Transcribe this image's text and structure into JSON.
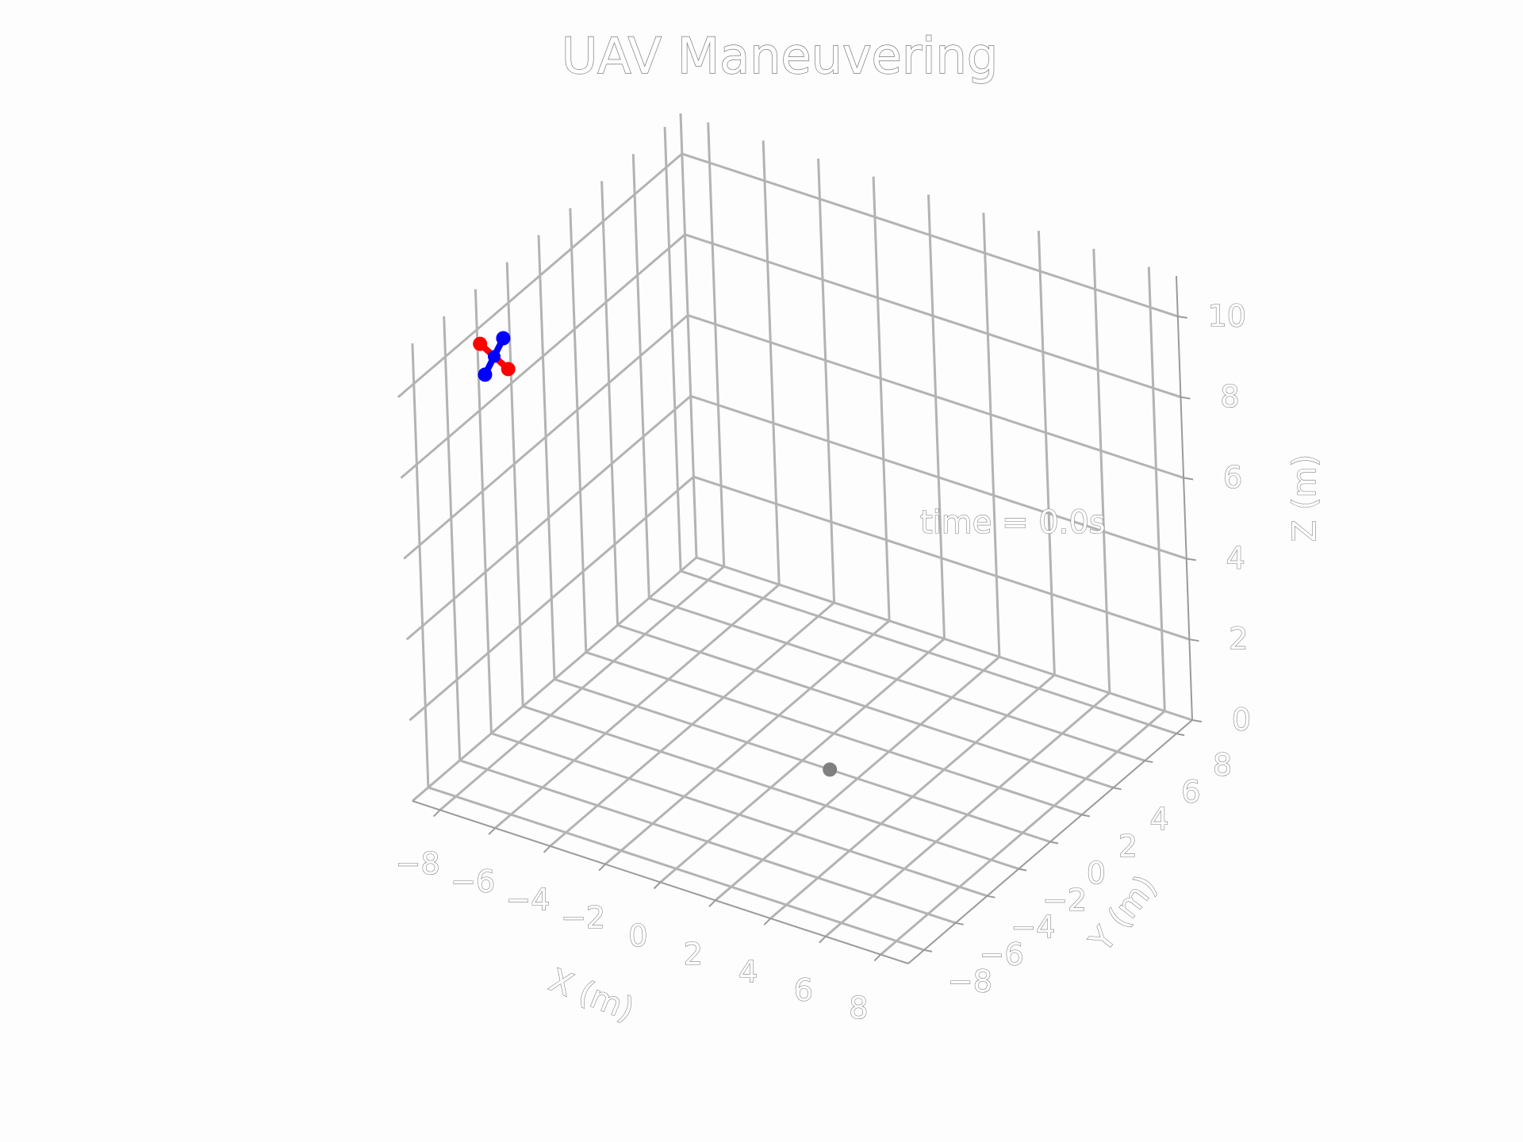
{
  "title": "UAV Maneuvering",
  "time_label": "time = 0.0s",
  "colors": {
    "grid": "#b3b3b3",
    "arm_a": "#ff0000",
    "arm_b": "#0000ff",
    "target": "#808080"
  },
  "chart_data": {
    "type": "scatter",
    "dimensions": 3,
    "title": "UAV Maneuvering",
    "xlabel": "X (m)",
    "ylabel": "Y (m)",
    "zlabel": "Z (m)",
    "xlim": [
      -9,
      9
    ],
    "ylim": [
      -9,
      9
    ],
    "zlim": [
      0,
      11
    ],
    "x_ticks": [
      -8,
      -6,
      -4,
      -2,
      0,
      2,
      4,
      6,
      8
    ],
    "y_ticks": [
      -8,
      -6,
      -4,
      -2,
      0,
      2,
      4,
      6,
      8
    ],
    "z_ticks": [
      0,
      2,
      4,
      6,
      8,
      10
    ],
    "x_tick_labels": [
      "−8",
      "−6",
      "−4",
      "−2",
      "0",
      "2",
      "4",
      "6",
      "8"
    ],
    "y_tick_labels": [
      "−8",
      "−6",
      "−4",
      "−2",
      "0",
      "2",
      "4",
      "6",
      "8"
    ],
    "z_tick_labels": [
      "0",
      "2",
      "4",
      "6",
      "8",
      "10"
    ],
    "grid": true,
    "time": 0.0,
    "uav": {
      "center": [
        -9.0,
        -3.0,
        9.0
      ],
      "arm_a": [
        [
          -9.5,
          -3.0,
          9.2
        ],
        [
          -8.5,
          -3.0,
          8.8
        ]
      ],
      "arm_b": [
        [
          -9.0,
          -3.6,
          8.75
        ],
        [
          -9.0,
          -2.4,
          9.25
        ]
      ]
    },
    "target": [
      1.0,
      0.0,
      0.0
    ]
  }
}
